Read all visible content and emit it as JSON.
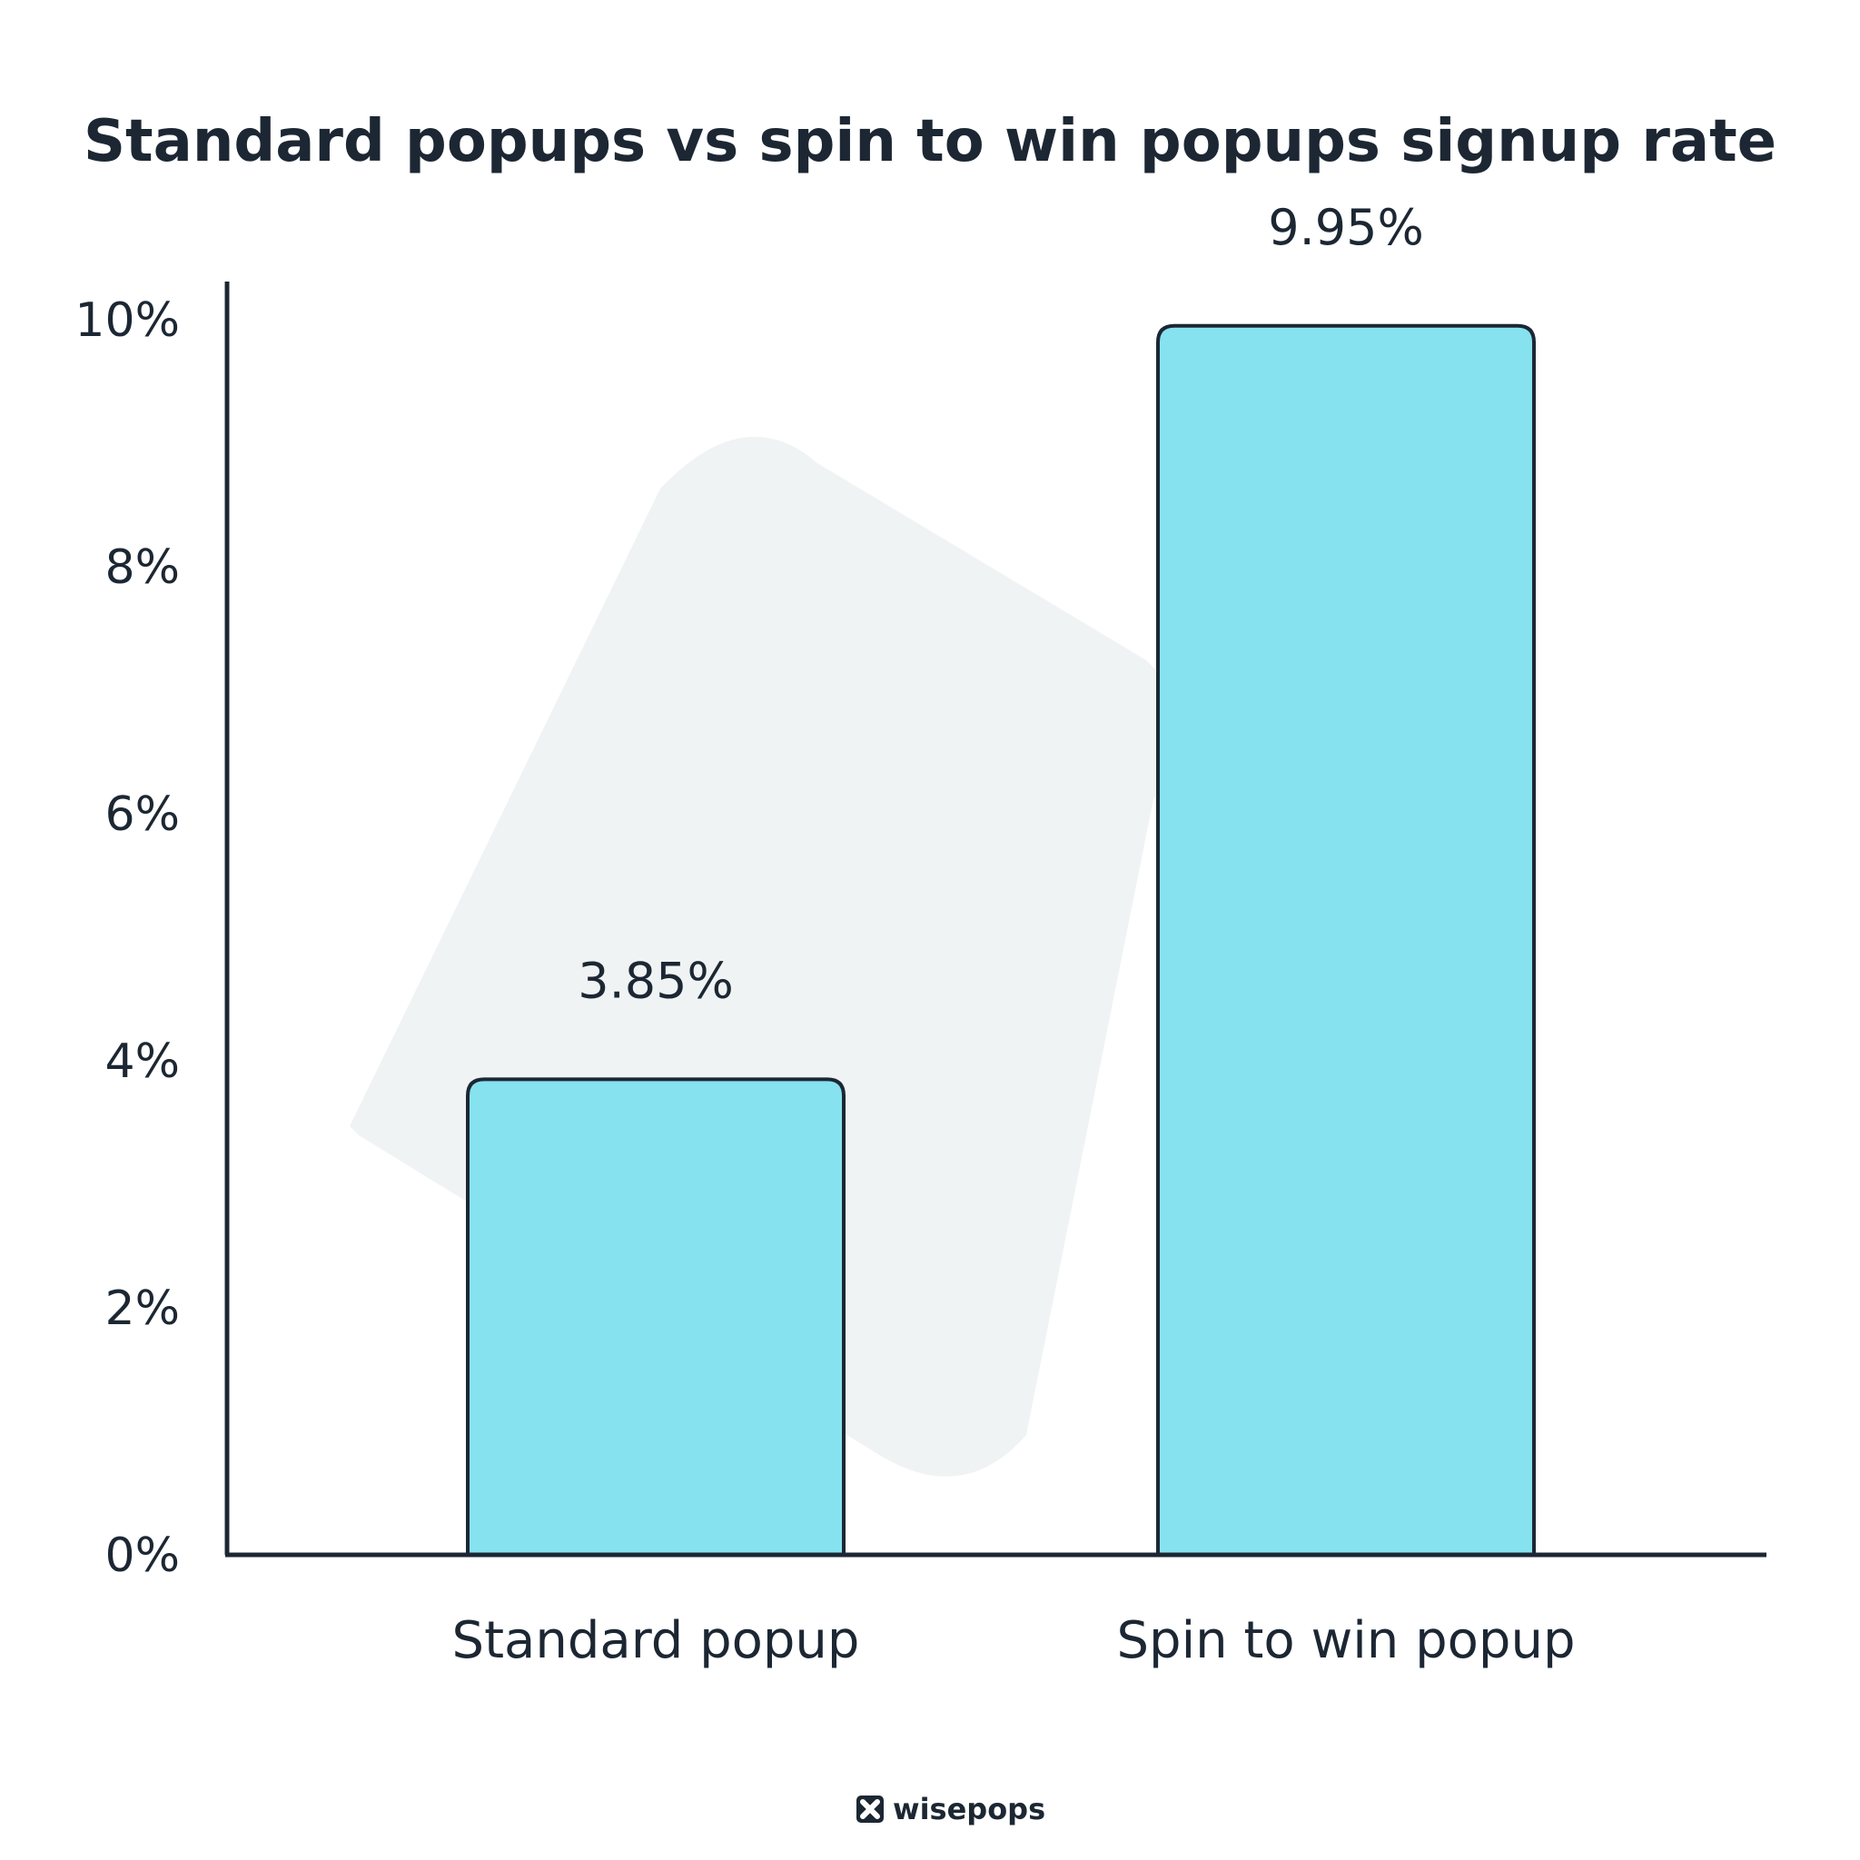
{
  "chart_data": {
    "type": "bar",
    "title": "Standard popups vs spin to win popups signup rate",
    "xlabel": "",
    "ylabel": "",
    "categories": [
      "Standard popup",
      "Spin to win popup"
    ],
    "values": [
      3.85,
      9.95
    ],
    "value_labels": [
      "3.85%",
      "9.95%"
    ],
    "ylim": [
      0,
      10
    ],
    "yticks": [
      0,
      2,
      4,
      6,
      8,
      10
    ],
    "ytick_labels": [
      "0%",
      "2%",
      "4%",
      "6%",
      "8%",
      "10%"
    ],
    "grid": false,
    "legend": "none",
    "colors": {
      "bar_fill": "#86e2ef",
      "bar_stroke": "#1c2733",
      "axis": "#1c2733",
      "text": "#1c2733",
      "background_shape": "#eff3f4"
    }
  },
  "brand": {
    "name": "wisepops",
    "icon": "wisepops-logo-icon"
  }
}
